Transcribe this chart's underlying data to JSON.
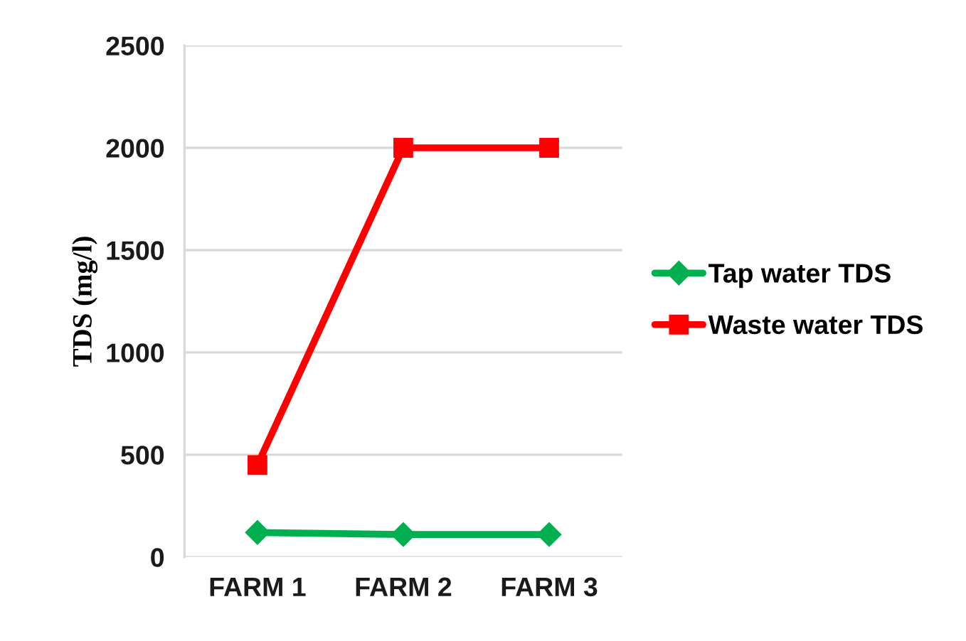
{
  "chart_data": {
    "type": "line",
    "ylabel": "TDS (mg/l)",
    "categories": [
      "FARM 1",
      "FARM 2",
      "FARM 3"
    ],
    "series": [
      {
        "name": "Tap water TDS",
        "color": "#00b050",
        "values": [
          120,
          110,
          110
        ],
        "marker": "diamond"
      },
      {
        "name": "Waste water TDS",
        "color": "#ff0000",
        "values": [
          450,
          2000,
          2000
        ],
        "marker": "square"
      }
    ],
    "ylim": [
      0,
      2500
    ],
    "yticks": [
      0,
      500,
      1000,
      1500,
      2000,
      2500
    ],
    "grid": "y",
    "legend": "right",
    "line_style": "solid"
  }
}
